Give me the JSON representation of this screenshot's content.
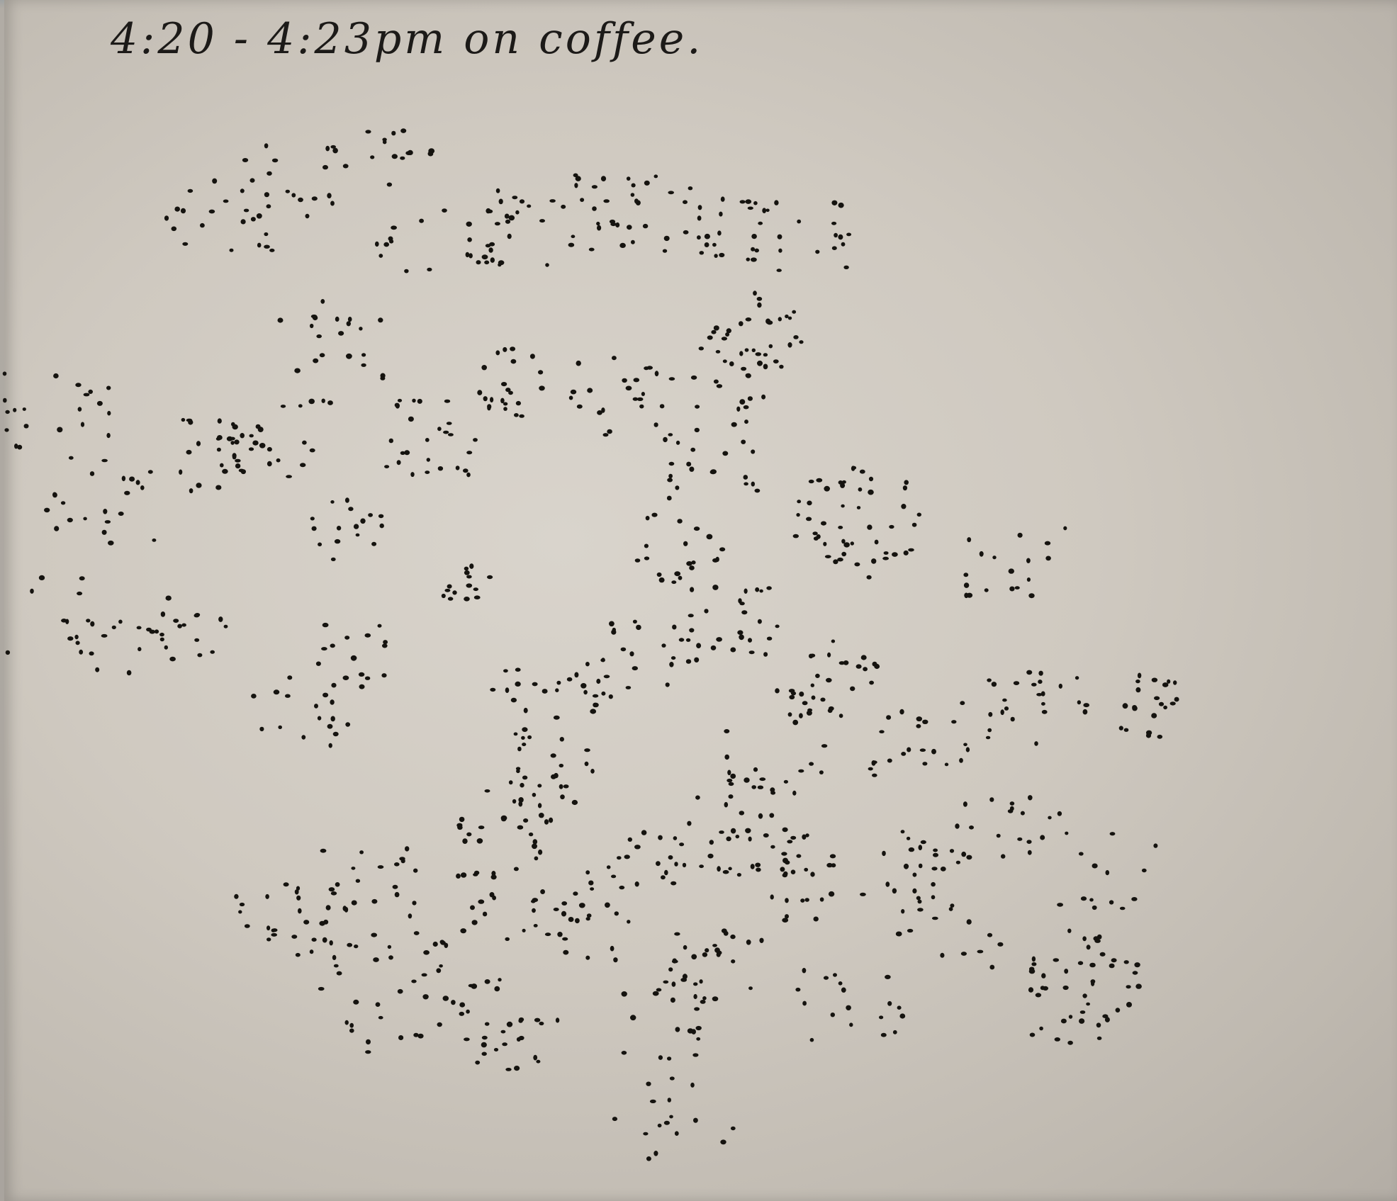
{
  "note": {
    "text": "4:20 - 4:23pm on coffee."
  },
  "colors": {
    "paper": "#d2cdc5",
    "ink": "#15130f",
    "table": "#a9a49e"
  },
  "drawing": {
    "subject": "pen-stippled dot pattern drawn over three minutes"
  }
}
